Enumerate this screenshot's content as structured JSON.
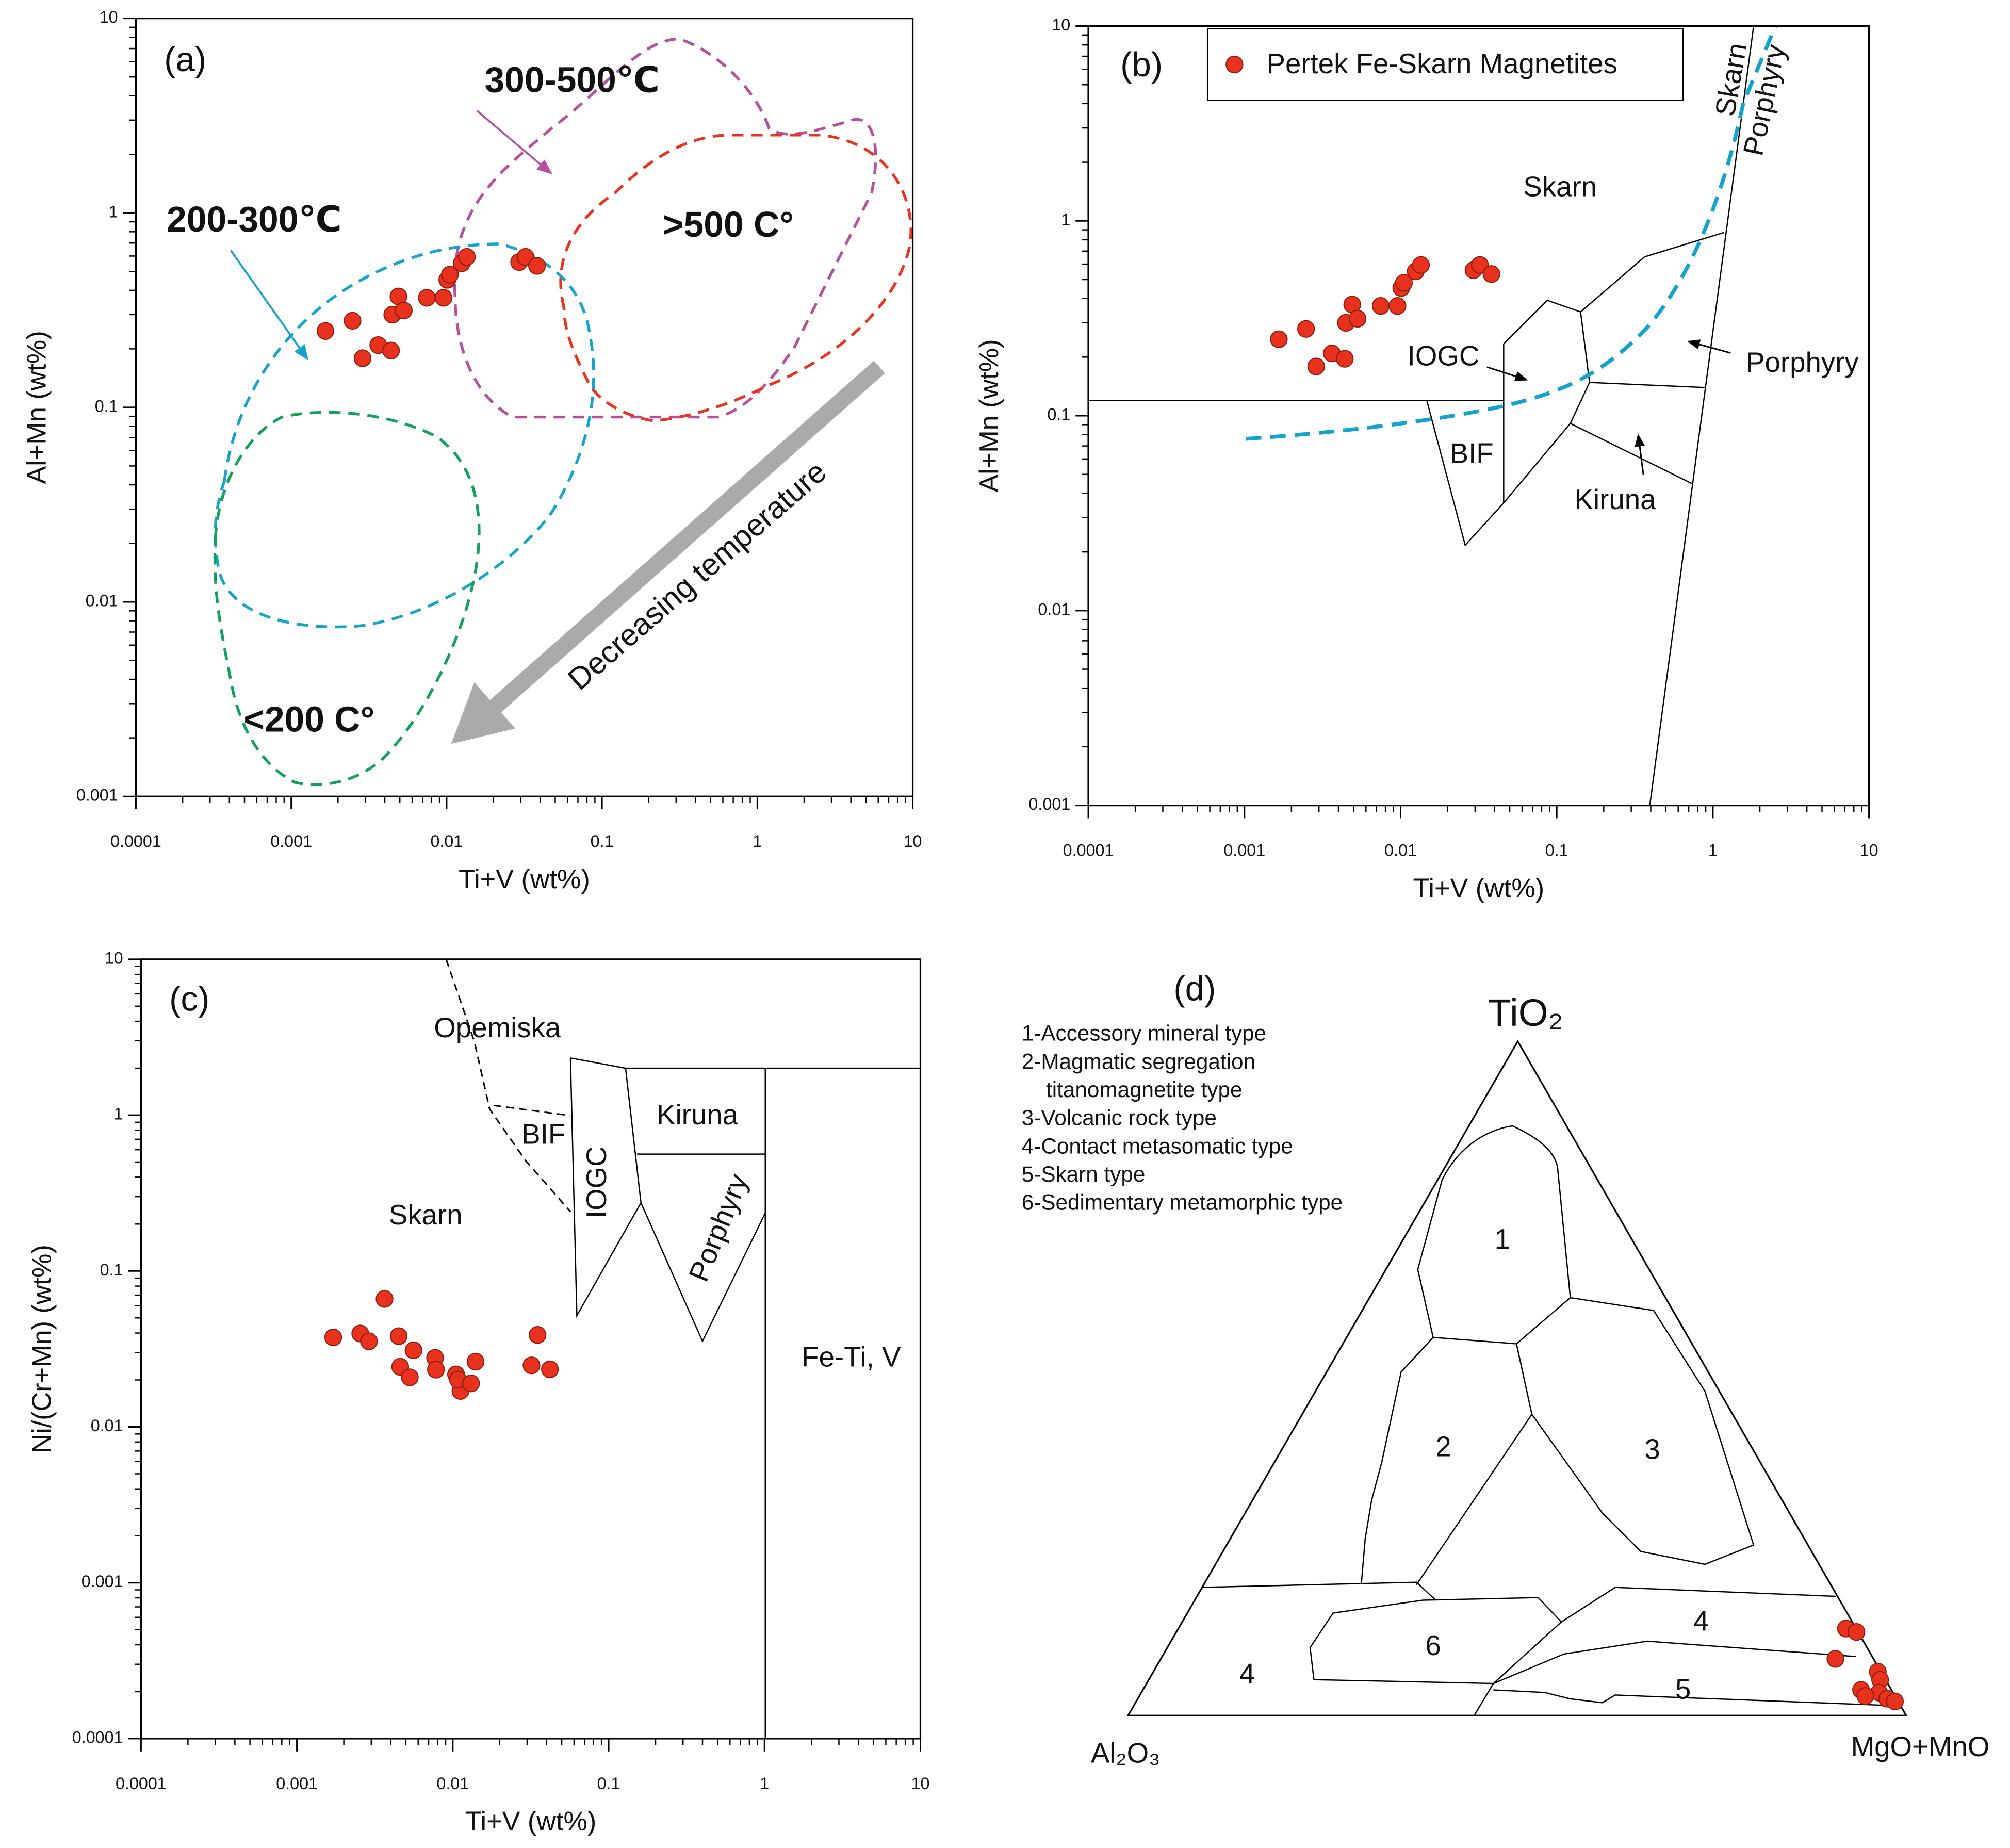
{
  "chart_data": [
    {
      "type": "scatter",
      "title": "(a)",
      "x_label": "Ti+V (wt%)",
      "y_label": "Al+Mn (wt%)",
      "log_x": true,
      "log_y": true,
      "xlim": [
        0.0001,
        10
      ],
      "ylim": [
        0.001,
        10
      ],
      "xticks": [
        0.0001,
        0.001,
        0.01,
        0.1,
        1,
        10
      ],
      "yticks": [
        0.001,
        0.01,
        0.1,
        1,
        10
      ],
      "series": [
        {
          "color": "#e8321e",
          "x": [
            0.00166,
            0.00248,
            0.00288,
            0.00363,
            0.00439,
            0.00447,
            0.0049,
            0.0053,
            0.00746,
            0.00955,
            0.0101,
            0.0105,
            0.0125,
            0.0135,
            0.0293,
            0.0322,
            0.0382
          ],
          "values": [
            0.247,
            0.279,
            0.179,
            0.209,
            0.196,
            0.3,
            0.372,
            0.315,
            0.366,
            0.366,
            0.453,
            0.481,
            0.551,
            0.594,
            0.559,
            0.594,
            0.534
          ]
        }
      ],
      "annotations": [
        {
          "text": "300-500℃",
          "color": "#b84f9e"
        },
        {
          "text": ">500 C°",
          "color": "#e8341e"
        },
        {
          "text": "200-300℃",
          "color": "#13a3cc"
        },
        {
          "text": "<200 C°",
          "color": "#13a05a"
        },
        {
          "text": "Decreasing temperature",
          "color": "#111111"
        }
      ]
    },
    {
      "type": "scatter",
      "title": "(b)",
      "x_label": "Ti+V (wt%)",
      "y_label": "Al+Mn (wt%)",
      "log_x": true,
      "log_y": true,
      "xlim": [
        0.0001,
        10
      ],
      "ylim": [
        0.001,
        10
      ],
      "xticks": [
        0.0001,
        0.001,
        0.01,
        0.1,
        1,
        10
      ],
      "yticks": [
        0.001,
        0.01,
        0.1,
        1,
        10
      ],
      "legend": "top-left",
      "series": [
        {
          "name": "Pertek Fe-Skarn Magnetites",
          "color": "#e8321e",
          "x": [
            0.00166,
            0.00248,
            0.00288,
            0.00363,
            0.00439,
            0.00447,
            0.0049,
            0.0053,
            0.00746,
            0.00955,
            0.0101,
            0.0105,
            0.0125,
            0.0135,
            0.0293,
            0.0322,
            0.0382
          ],
          "values": [
            0.247,
            0.279,
            0.179,
            0.209,
            0.196,
            0.3,
            0.372,
            0.315,
            0.366,
            0.366,
            0.453,
            0.481,
            0.551,
            0.594,
            0.559,
            0.594,
            0.534
          ]
        }
      ],
      "annotations": [
        {
          "text": "Skarn"
        },
        {
          "text": "Porphyry"
        },
        {
          "text": "Skarn"
        },
        {
          "text": "IOGC"
        },
        {
          "text": "BIF"
        },
        {
          "text": "Kiruna"
        },
        {
          "text": "Porphyry"
        }
      ]
    },
    {
      "type": "scatter",
      "title": "(c)",
      "x_label": "Ti+V (wt%)",
      "y_label": "Ni/(Cr+Mn) (wt%)",
      "log_x": true,
      "log_y": true,
      "xlim": [
        0.0001,
        10
      ],
      "ylim": [
        0.0001,
        10
      ],
      "xticks": [
        0.0001,
        0.001,
        0.01,
        0.1,
        1,
        10
      ],
      "yticks": [
        0.0001,
        0.001,
        0.01,
        0.1,
        1,
        10
      ],
      "series": [
        {
          "color": "#e8321e",
          "x": [
            0.00171,
            0.00255,
            0.0029,
            0.00365,
            0.0045,
            0.0046,
            0.0053,
            0.0056,
            0.0077,
            0.0078,
            0.0105,
            0.0112,
            0.0108,
            0.0131,
            0.014,
            0.032,
            0.035,
            0.042
          ],
          "values": [
            0.0375,
            0.0397,
            0.0354,
            0.0662,
            0.0382,
            0.0243,
            0.0208,
            0.031,
            0.0277,
            0.0233,
            0.0217,
            0.017,
            0.0201,
            0.019,
            0.0262,
            0.0248,
            0.0389,
            0.0234
          ]
        }
      ],
      "annotations": [
        {
          "text": "Opemiska"
        },
        {
          "text": "BIF"
        },
        {
          "text": "IOGC"
        },
        {
          "text": "Kiruna"
        },
        {
          "text": "Porphyry"
        },
        {
          "text": "Skarn"
        },
        {
          "text": "Fe-Ti, V"
        }
      ]
    },
    {
      "type": "ternary",
      "title": "(d)",
      "apex_top": "TiO₂",
      "apex_left": "Al₂O₃",
      "apex_right": "MgO+MnO",
      "legend_lines": [
        "1-Accessory mineral type",
        "2-Magmatic segregation",
        "titanomagnetite type",
        "3-Volcanic rock type",
        "4-Contact metasomatic type",
        "5-Skarn type",
        "6-Sedimentary metamorphic type"
      ],
      "field_labels": [
        "1",
        "2",
        "3",
        "4",
        "6",
        "4",
        "5"
      ],
      "series": [
        {
          "color": "#e8321e",
          "tio2": [
            12.9,
            12.4,
            8.4,
            6.5,
            5.3,
            3.8,
            3.4,
            2.5,
            2.1,
            2.9
          ],
          "al2o3": [
            1.3,
            0.2,
            4.9,
            0.4,
            0.7,
            3.9,
            1.8,
            1.2,
            0.4,
            3.8
          ],
          "mgo_mno": [
            85.8,
            87.4,
            86.7,
            93.1,
            94.0,
            92.3,
            94.8,
            96.3,
            97.5,
            93.3
          ]
        }
      ]
    }
  ]
}
